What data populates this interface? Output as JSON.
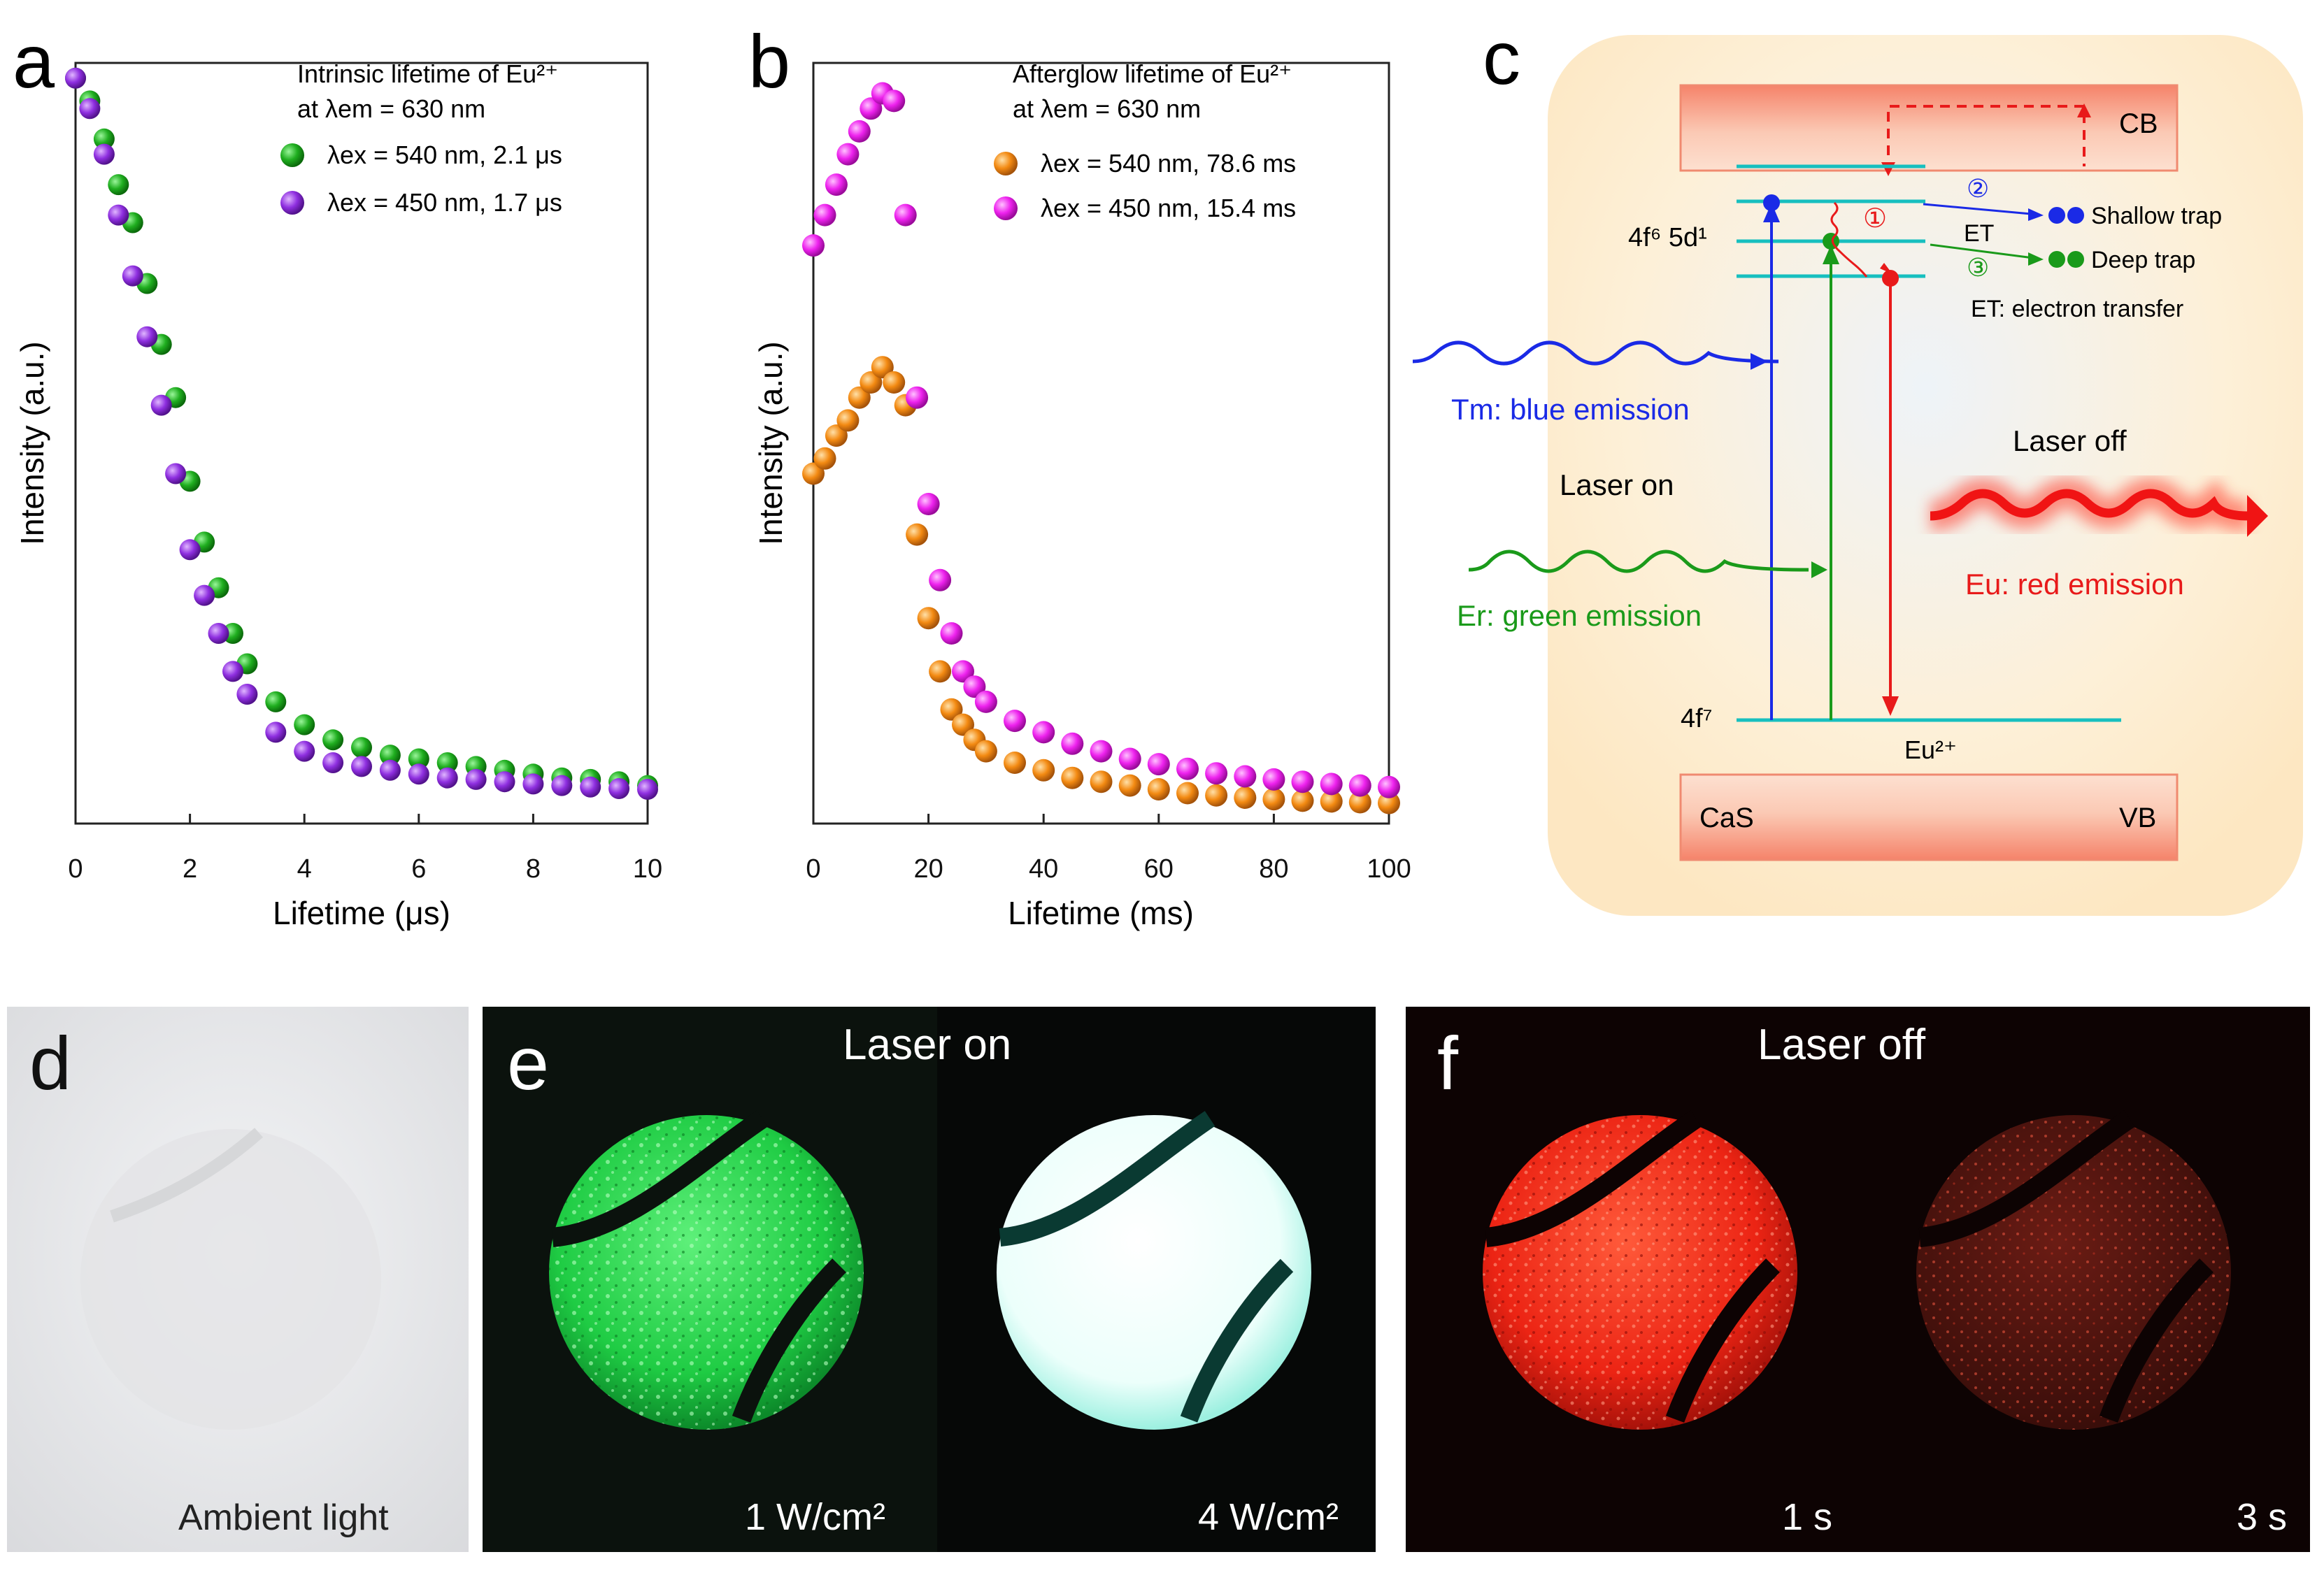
{
  "figure": {
    "panel_letters": [
      "a",
      "b",
      "c",
      "d",
      "e",
      "f"
    ],
    "colors": {
      "green": "#1aa51a",
      "purple": "#8f2fe0",
      "orange": "#f38a12",
      "magenta": "#ee22ee",
      "cyan": "#17bfbf",
      "blue": "#1a2ae6",
      "emission_green": "#1a9a1a",
      "red": "#e81a1a",
      "panel_c_bg": "#fde9c4"
    }
  },
  "chart_data": [
    {
      "panel": "a",
      "type": "scatter",
      "xlabel": "Lifetime (μs)",
      "ylabel": "Intensity (a.u.)",
      "xlim": [
        0,
        10
      ],
      "xticks": [
        "0",
        "2",
        "4",
        "6",
        "8",
        "10"
      ],
      "ylim": [
        0,
        1
      ],
      "legend": {
        "title_line1": "Intrinsic lifetime of Eu²⁺",
        "title_line2": "at λem = 630 nm",
        "position": "top-right"
      },
      "series": [
        {
          "name": "λex = 540 nm, 2.1 μs",
          "color": "green",
          "lifetime": 2.1,
          "x": [
            0.0,
            0.25,
            0.5,
            0.75,
            1.0,
            1.25,
            1.5,
            1.75,
            2.0,
            2.25,
            2.5,
            2.75,
            3.0,
            3.5,
            4.0,
            4.5,
            5.0,
            5.5,
            6.0,
            6.5,
            7.0,
            7.5,
            8.0,
            8.5,
            9.0,
            9.5,
            10.0
          ],
          "values": [
            0.98,
            0.95,
            0.9,
            0.84,
            0.79,
            0.71,
            0.63,
            0.56,
            0.45,
            0.37,
            0.31,
            0.25,
            0.21,
            0.16,
            0.13,
            0.11,
            0.1,
            0.09,
            0.085,
            0.08,
            0.075,
            0.07,
            0.065,
            0.06,
            0.058,
            0.055,
            0.05
          ]
        },
        {
          "name": "λex = 450 nm, 1.7 μs",
          "color": "purple",
          "lifetime": 1.7,
          "x": [
            0.0,
            0.25,
            0.5,
            0.75,
            1.0,
            1.25,
            1.5,
            1.75,
            2.0,
            2.25,
            2.5,
            2.75,
            3.0,
            3.5,
            4.0,
            4.5,
            5.0,
            5.5,
            6.0,
            6.5,
            7.0,
            7.5,
            8.0,
            8.5,
            9.0,
            9.5,
            10.0
          ],
          "values": [
            0.98,
            0.94,
            0.88,
            0.8,
            0.72,
            0.64,
            0.55,
            0.46,
            0.36,
            0.3,
            0.25,
            0.2,
            0.17,
            0.12,
            0.095,
            0.08,
            0.075,
            0.07,
            0.065,
            0.06,
            0.058,
            0.055,
            0.052,
            0.05,
            0.048,
            0.046,
            0.045
          ]
        }
      ]
    },
    {
      "panel": "b",
      "type": "scatter",
      "xlabel": "Lifetime (ms)",
      "ylabel": "Intensity (a.u.)",
      "xlim": [
        0,
        100
      ],
      "xticks": [
        "0",
        "20",
        "40",
        "60",
        "80",
        "100"
      ],
      "ylim": [
        0,
        1
      ],
      "legend": {
        "title_line1": "Afterglow lifetime of Eu²⁺",
        "title_line2": "at λem = 630 nm",
        "position": "top-right"
      },
      "series": [
        {
          "name": "λex = 540 nm, 78.6 ms",
          "color": "orange",
          "lifetime": 78.6,
          "x": [
            0,
            2,
            4,
            6,
            8,
            10,
            12,
            14,
            16,
            18,
            20,
            22,
            24,
            26,
            28,
            30,
            35,
            40,
            45,
            50,
            55,
            60,
            65,
            70,
            75,
            80,
            85,
            90,
            95,
            100
          ],
          "values": [
            0.46,
            0.48,
            0.51,
            0.53,
            0.56,
            0.58,
            0.6,
            0.58,
            0.55,
            0.38,
            0.27,
            0.2,
            0.15,
            0.13,
            0.11,
            0.095,
            0.08,
            0.07,
            0.06,
            0.055,
            0.05,
            0.045,
            0.04,
            0.037,
            0.034,
            0.032,
            0.03,
            0.029,
            0.028,
            0.027
          ]
        },
        {
          "name": "λex = 450 nm, 15.4 ms",
          "color": "magenta",
          "lifetime": 15.4,
          "x": [
            0,
            2,
            4,
            6,
            8,
            10,
            12,
            14,
            16,
            18,
            20,
            22,
            24,
            26,
            28,
            30,
            35,
            40,
            45,
            50,
            55,
            60,
            65,
            70,
            75,
            80,
            85,
            90,
            95,
            100
          ],
          "values": [
            0.76,
            0.8,
            0.84,
            0.88,
            0.91,
            0.94,
            0.96,
            0.95,
            0.8,
            0.56,
            0.42,
            0.32,
            0.25,
            0.2,
            0.18,
            0.16,
            0.135,
            0.12,
            0.105,
            0.095,
            0.085,
            0.078,
            0.072,
            0.066,
            0.062,
            0.058,
            0.055,
            0.052,
            0.05,
            0.048
          ]
        }
      ]
    }
  ],
  "panel_c": {
    "cb": "CB",
    "vb": "VB",
    "host": "CaS",
    "excited_state": "4f⁶ 5d¹",
    "ground_state": "4f⁷",
    "ion": "Eu²⁺",
    "step1": "①",
    "step2": "②",
    "step3": "③",
    "et_label": "ET",
    "shallow_trap": "Shallow trap",
    "deep_trap": "Deep trap",
    "et_definition": "ET: electron transfer",
    "tm_emission": "Tm: blue emission",
    "er_emission": "Er: green emission",
    "laser_on": "Laser on",
    "laser_off": "Laser off",
    "eu_emission": "Eu: red emission"
  },
  "photos": {
    "d": {
      "caption": "Ambient light"
    },
    "e": {
      "title": "Laser on",
      "left_caption": "1 W/cm²",
      "right_caption": "4 W/cm²"
    },
    "f": {
      "title": "Laser off",
      "left_caption": "1 s",
      "right_caption": "3 s"
    }
  }
}
